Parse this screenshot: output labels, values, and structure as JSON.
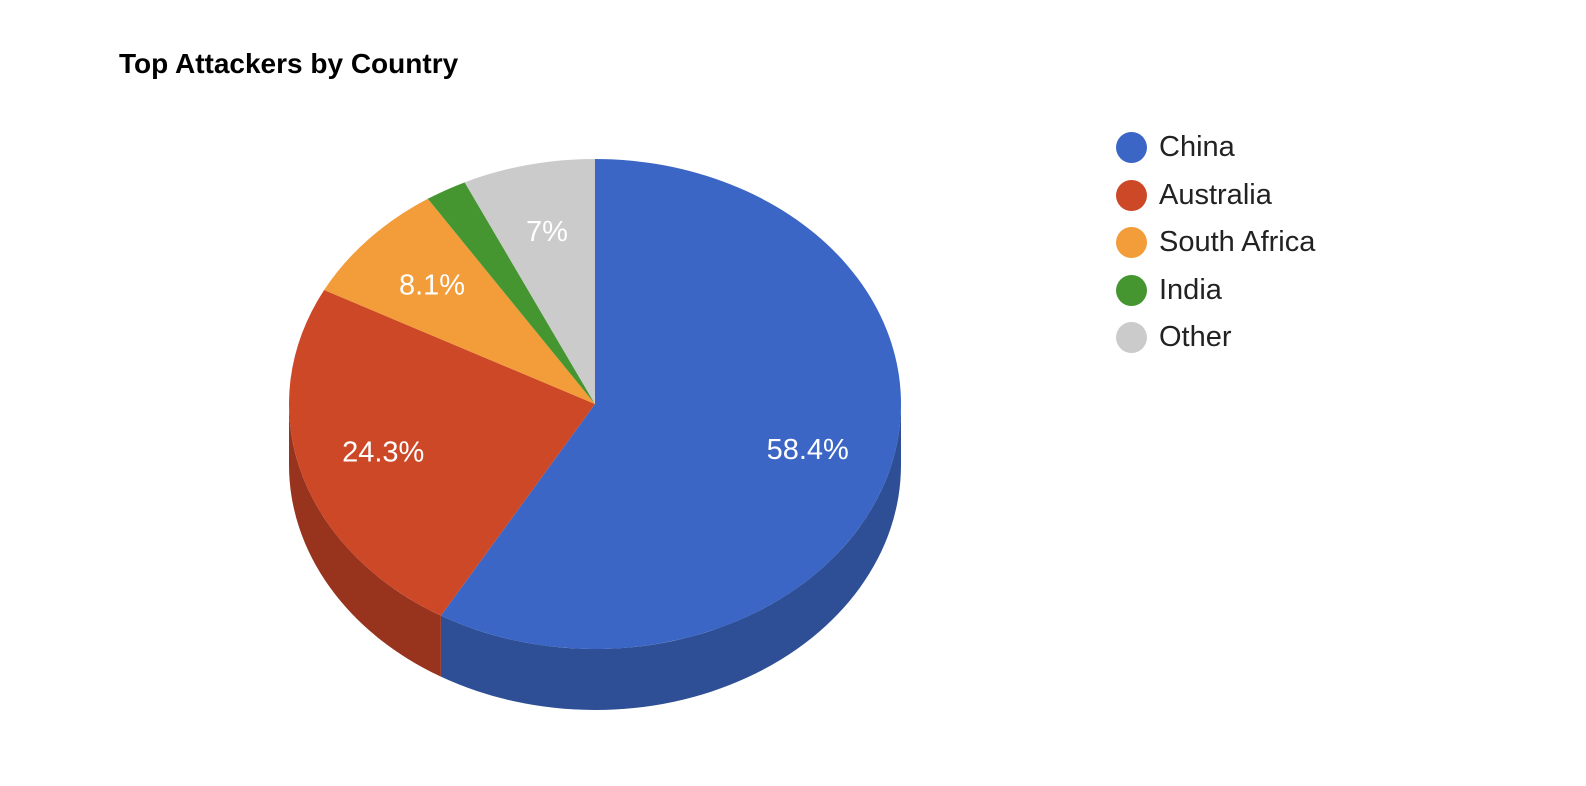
{
  "chart_data": {
    "type": "pie",
    "title": "Top Attackers by Country",
    "three_d": true,
    "legend_position": "right",
    "slices": [
      {
        "label": "China",
        "value": 58.4,
        "value_label": "58.4%",
        "color": "#3b66c5",
        "side_color": "#2e4f95"
      },
      {
        "label": "Australia",
        "value": 24.3,
        "value_label": "24.3%",
        "color": "#cc4827",
        "side_color": "#98331e"
      },
      {
        "label": "South Africa",
        "value": 8.1,
        "value_label": "8.1%",
        "color": "#f39c3a",
        "side_color": "#b8752b"
      },
      {
        "label": "India",
        "value": 2.2,
        "value_label": "",
        "color": "#459631",
        "side_color": "#336f24"
      },
      {
        "label": "Other",
        "value": 7.0,
        "value_label": "7%",
        "color": "#cbcbcb",
        "side_color": "#989898"
      }
    ]
  }
}
